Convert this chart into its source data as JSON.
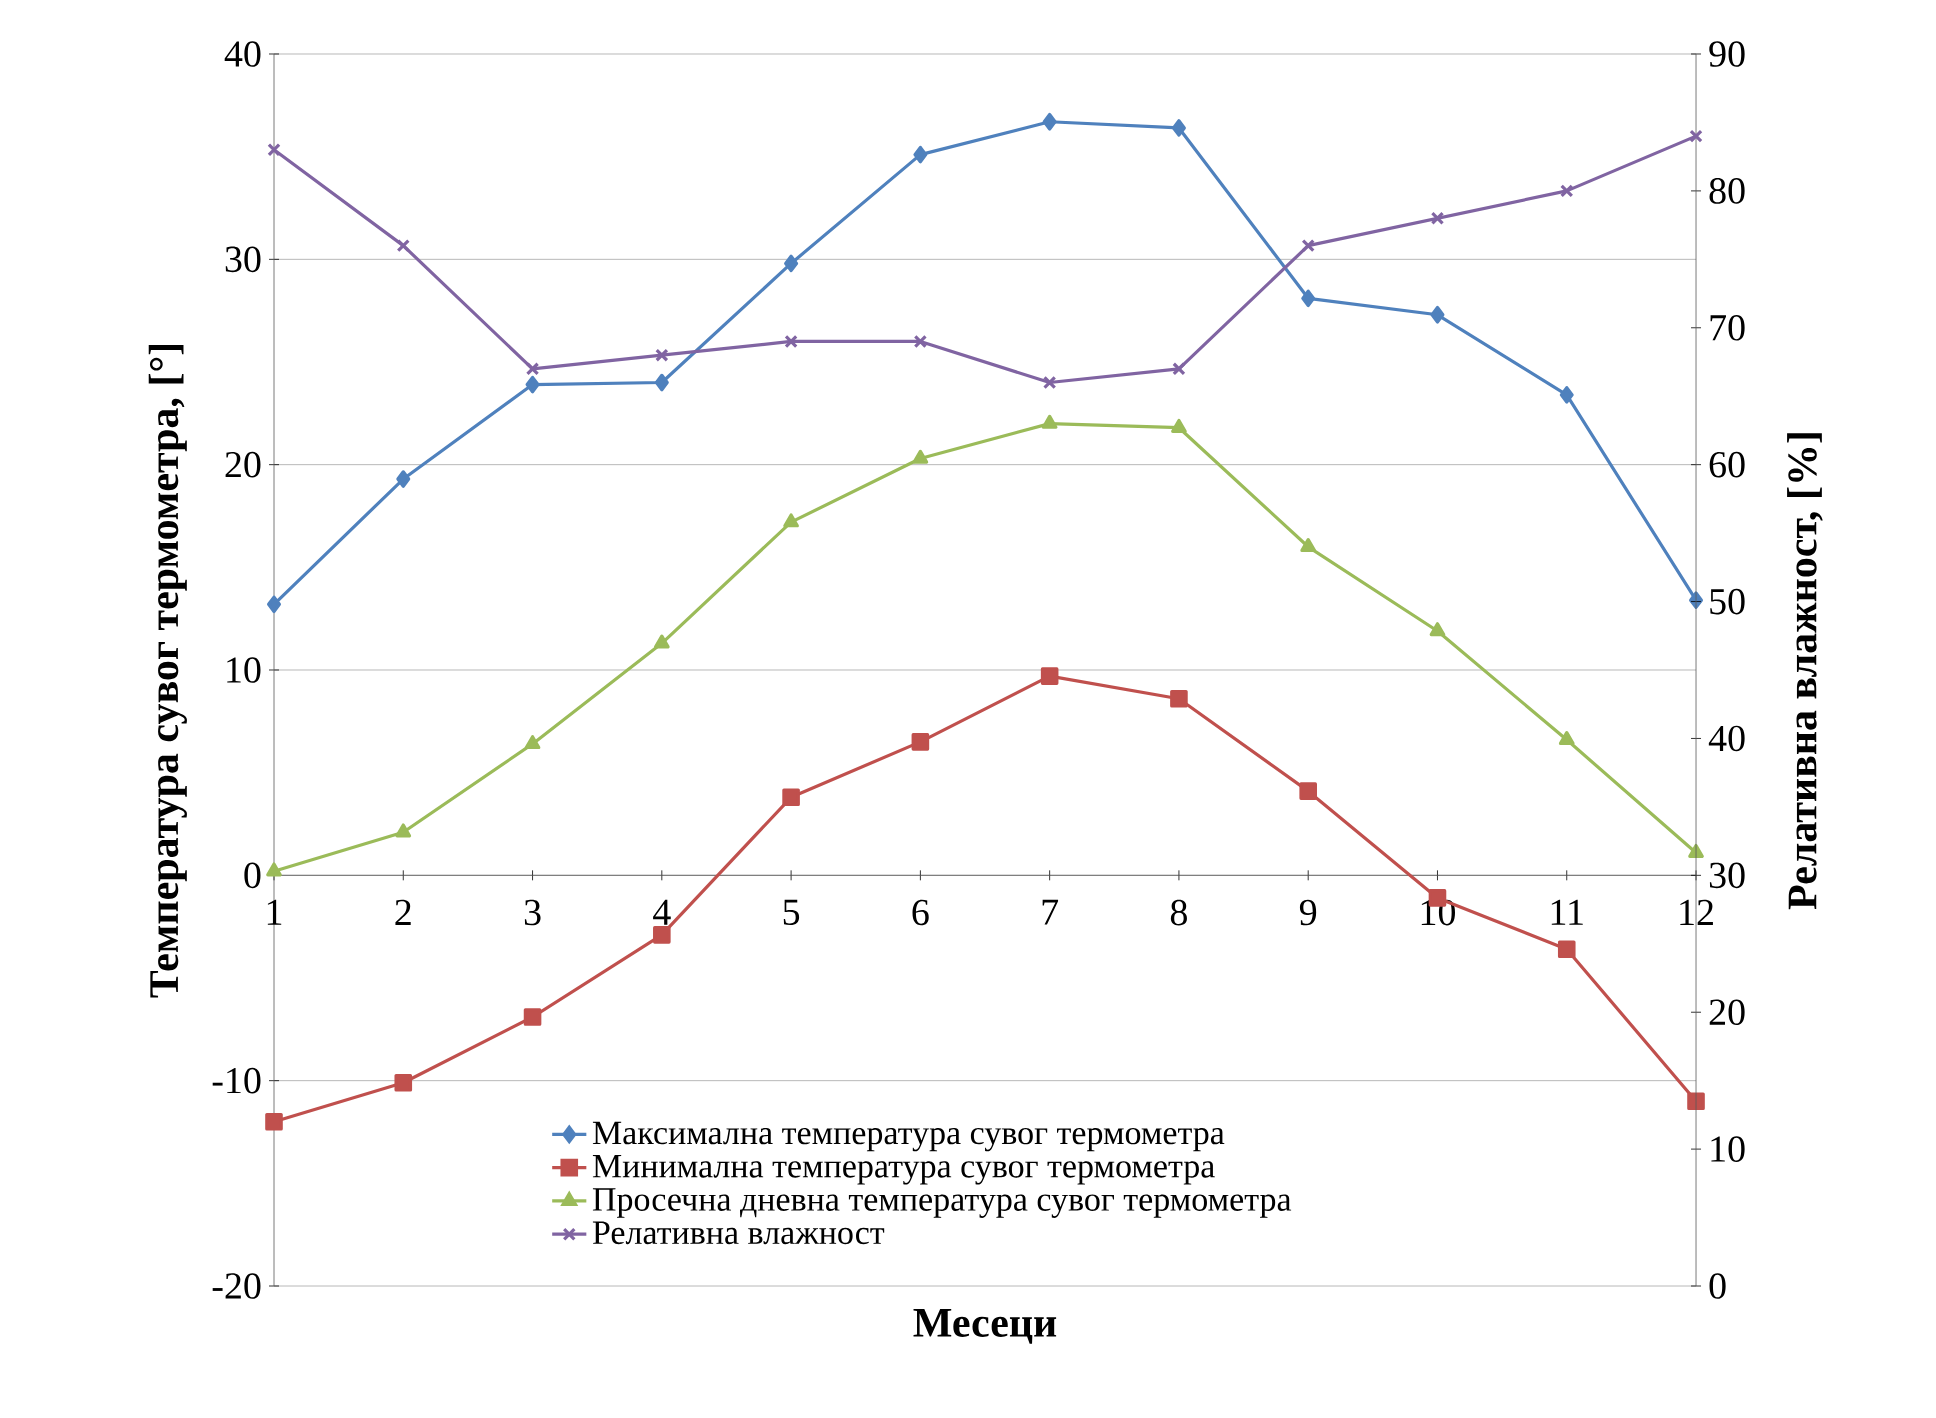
{
  "chart_data": {
    "type": "line",
    "xlabel": "Месеци",
    "ylabel": "Температура сувог термометра, [°]",
    "y2label": "Релативна влажност, [%]",
    "categories": [
      "1",
      "2",
      "3",
      "4",
      "5",
      "6",
      "7",
      "8",
      "9",
      "10",
      "11",
      "12"
    ],
    "ylim": [
      -20,
      40
    ],
    "yticks": [
      -20,
      -10,
      0,
      10,
      20,
      30,
      40
    ],
    "y2lim": [
      0,
      90
    ],
    "y2ticks": [
      0,
      10,
      20,
      30,
      40,
      50,
      60,
      70,
      80,
      90
    ],
    "grid": "y",
    "legend": "bottom",
    "series": [
      {
        "name": "Максимална температура сувог термометра",
        "color": "#4f81bd",
        "marker": "diamond",
        "values": [
          13.2,
          19.3,
          23.9,
          24.0,
          29.8,
          35.1,
          36.7,
          36.4,
          28.1,
          27.3,
          23.4,
          13.4
        ]
      },
      {
        "name": "Минимална температура сувог термометра",
        "color": "#c0504d",
        "marker": "square",
        "values": [
          -12.0,
          -10.1,
          -6.9,
          -2.9,
          3.8,
          6.5,
          9.7,
          8.6,
          4.1,
          -1.1,
          -3.6,
          -11.0
        ]
      },
      {
        "name": "Просечна дневна температура сувог термометра",
        "color": "#9bbb59",
        "marker": "triangle",
        "values": [
          0.2,
          2.1,
          6.4,
          11.3,
          17.2,
          20.3,
          22.0,
          21.8,
          16.0,
          11.9,
          6.6,
          1.1
        ]
      },
      {
        "name": "Релативна влажност",
        "color": "#8064a2",
        "marker": "cross",
        "axis": "y2",
        "values": [
          83,
          76,
          67,
          68,
          69,
          69,
          66,
          67,
          76,
          78,
          80,
          84
        ]
      }
    ]
  }
}
